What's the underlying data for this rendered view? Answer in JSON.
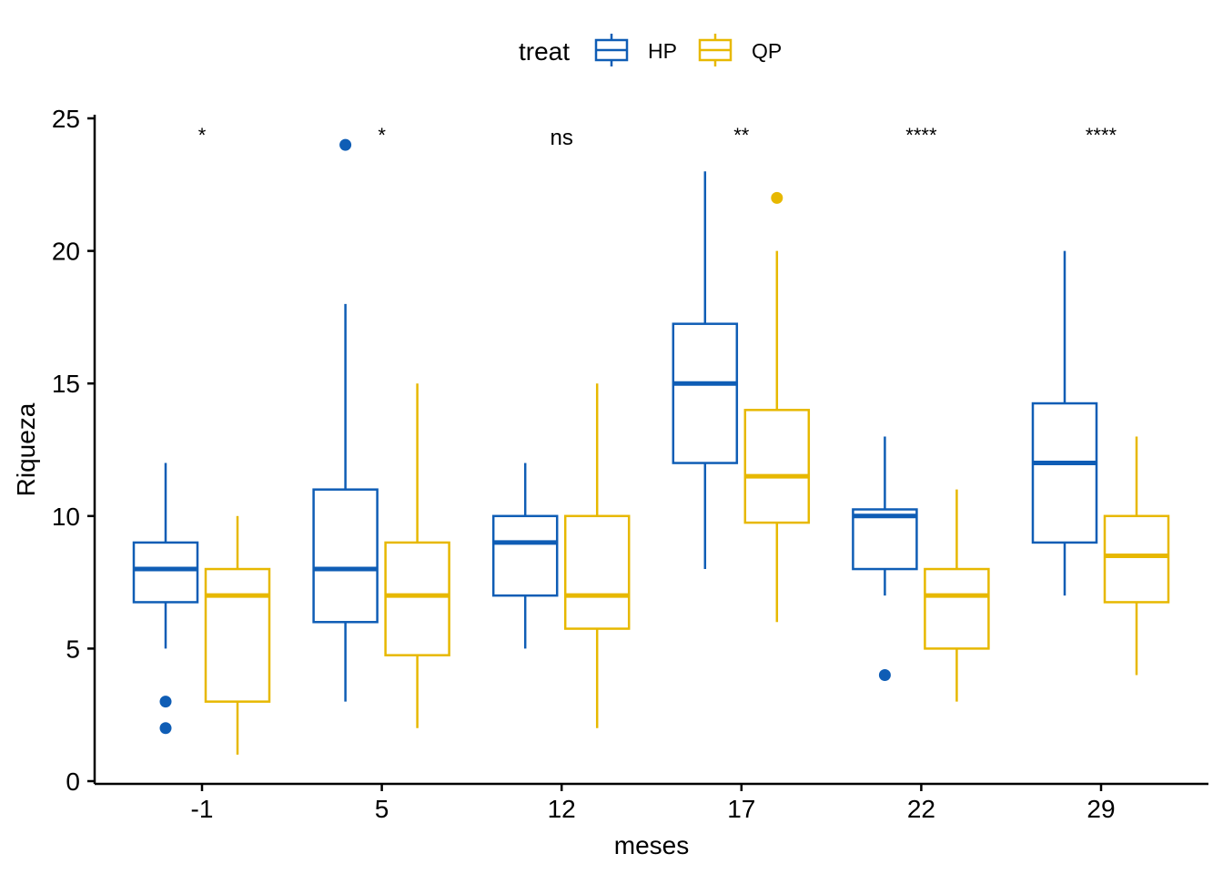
{
  "chart_data": {
    "type": "boxplot",
    "title": "",
    "xlabel": "meses",
    "ylabel": "Riqueza",
    "ylim": [
      0,
      25
    ],
    "yticks": [
      0,
      5,
      10,
      15,
      20,
      25
    ],
    "grid": false,
    "legend": {
      "title": "treat",
      "position": "top",
      "entries": [
        "HP",
        "QP"
      ]
    },
    "categories": [
      "-1",
      "5",
      "12",
      "17",
      "22",
      "29"
    ],
    "significance": [
      "*",
      "*",
      "ns",
      "**",
      "****",
      "****"
    ],
    "series": [
      {
        "name": "HP",
        "color": "#0F5DB5",
        "boxes": [
          {
            "min": 5,
            "q1": 6.75,
            "median": 8,
            "q3": 9,
            "max": 12,
            "outliers": [
              3,
              2
            ]
          },
          {
            "min": 3,
            "q1": 6,
            "median": 8,
            "q3": 11,
            "max": 18,
            "outliers": [
              24
            ]
          },
          {
            "min": 5,
            "q1": 7,
            "median": 9,
            "q3": 10,
            "max": 12,
            "outliers": []
          },
          {
            "min": 8,
            "q1": 12,
            "median": 15,
            "q3": 17.25,
            "max": 23,
            "outliers": []
          },
          {
            "min": 7,
            "q1": 8,
            "median": 10,
            "q3": 10.25,
            "max": 13,
            "outliers": [
              4
            ]
          },
          {
            "min": 7,
            "q1": 9,
            "median": 12,
            "q3": 14.25,
            "max": 20,
            "outliers": []
          }
        ]
      },
      {
        "name": "QP",
        "color": "#E7B800",
        "boxes": [
          {
            "min": 1,
            "q1": 3,
            "median": 7,
            "q3": 8,
            "max": 10,
            "outliers": []
          },
          {
            "min": 2,
            "q1": 4.75,
            "median": 7,
            "q3": 9,
            "max": 15,
            "outliers": []
          },
          {
            "min": 2,
            "q1": 5.75,
            "median": 7,
            "q3": 10,
            "max": 15,
            "outliers": []
          },
          {
            "min": 6,
            "q1": 9.75,
            "median": 11.5,
            "q3": 14,
            "max": 20,
            "outliers": [
              22
            ]
          },
          {
            "min": 3,
            "q1": 5,
            "median": 7,
            "q3": 8,
            "max": 11,
            "outliers": []
          },
          {
            "min": 4,
            "q1": 6.75,
            "median": 8.5,
            "q3": 10,
            "max": 13,
            "outliers": []
          }
        ]
      }
    ]
  }
}
